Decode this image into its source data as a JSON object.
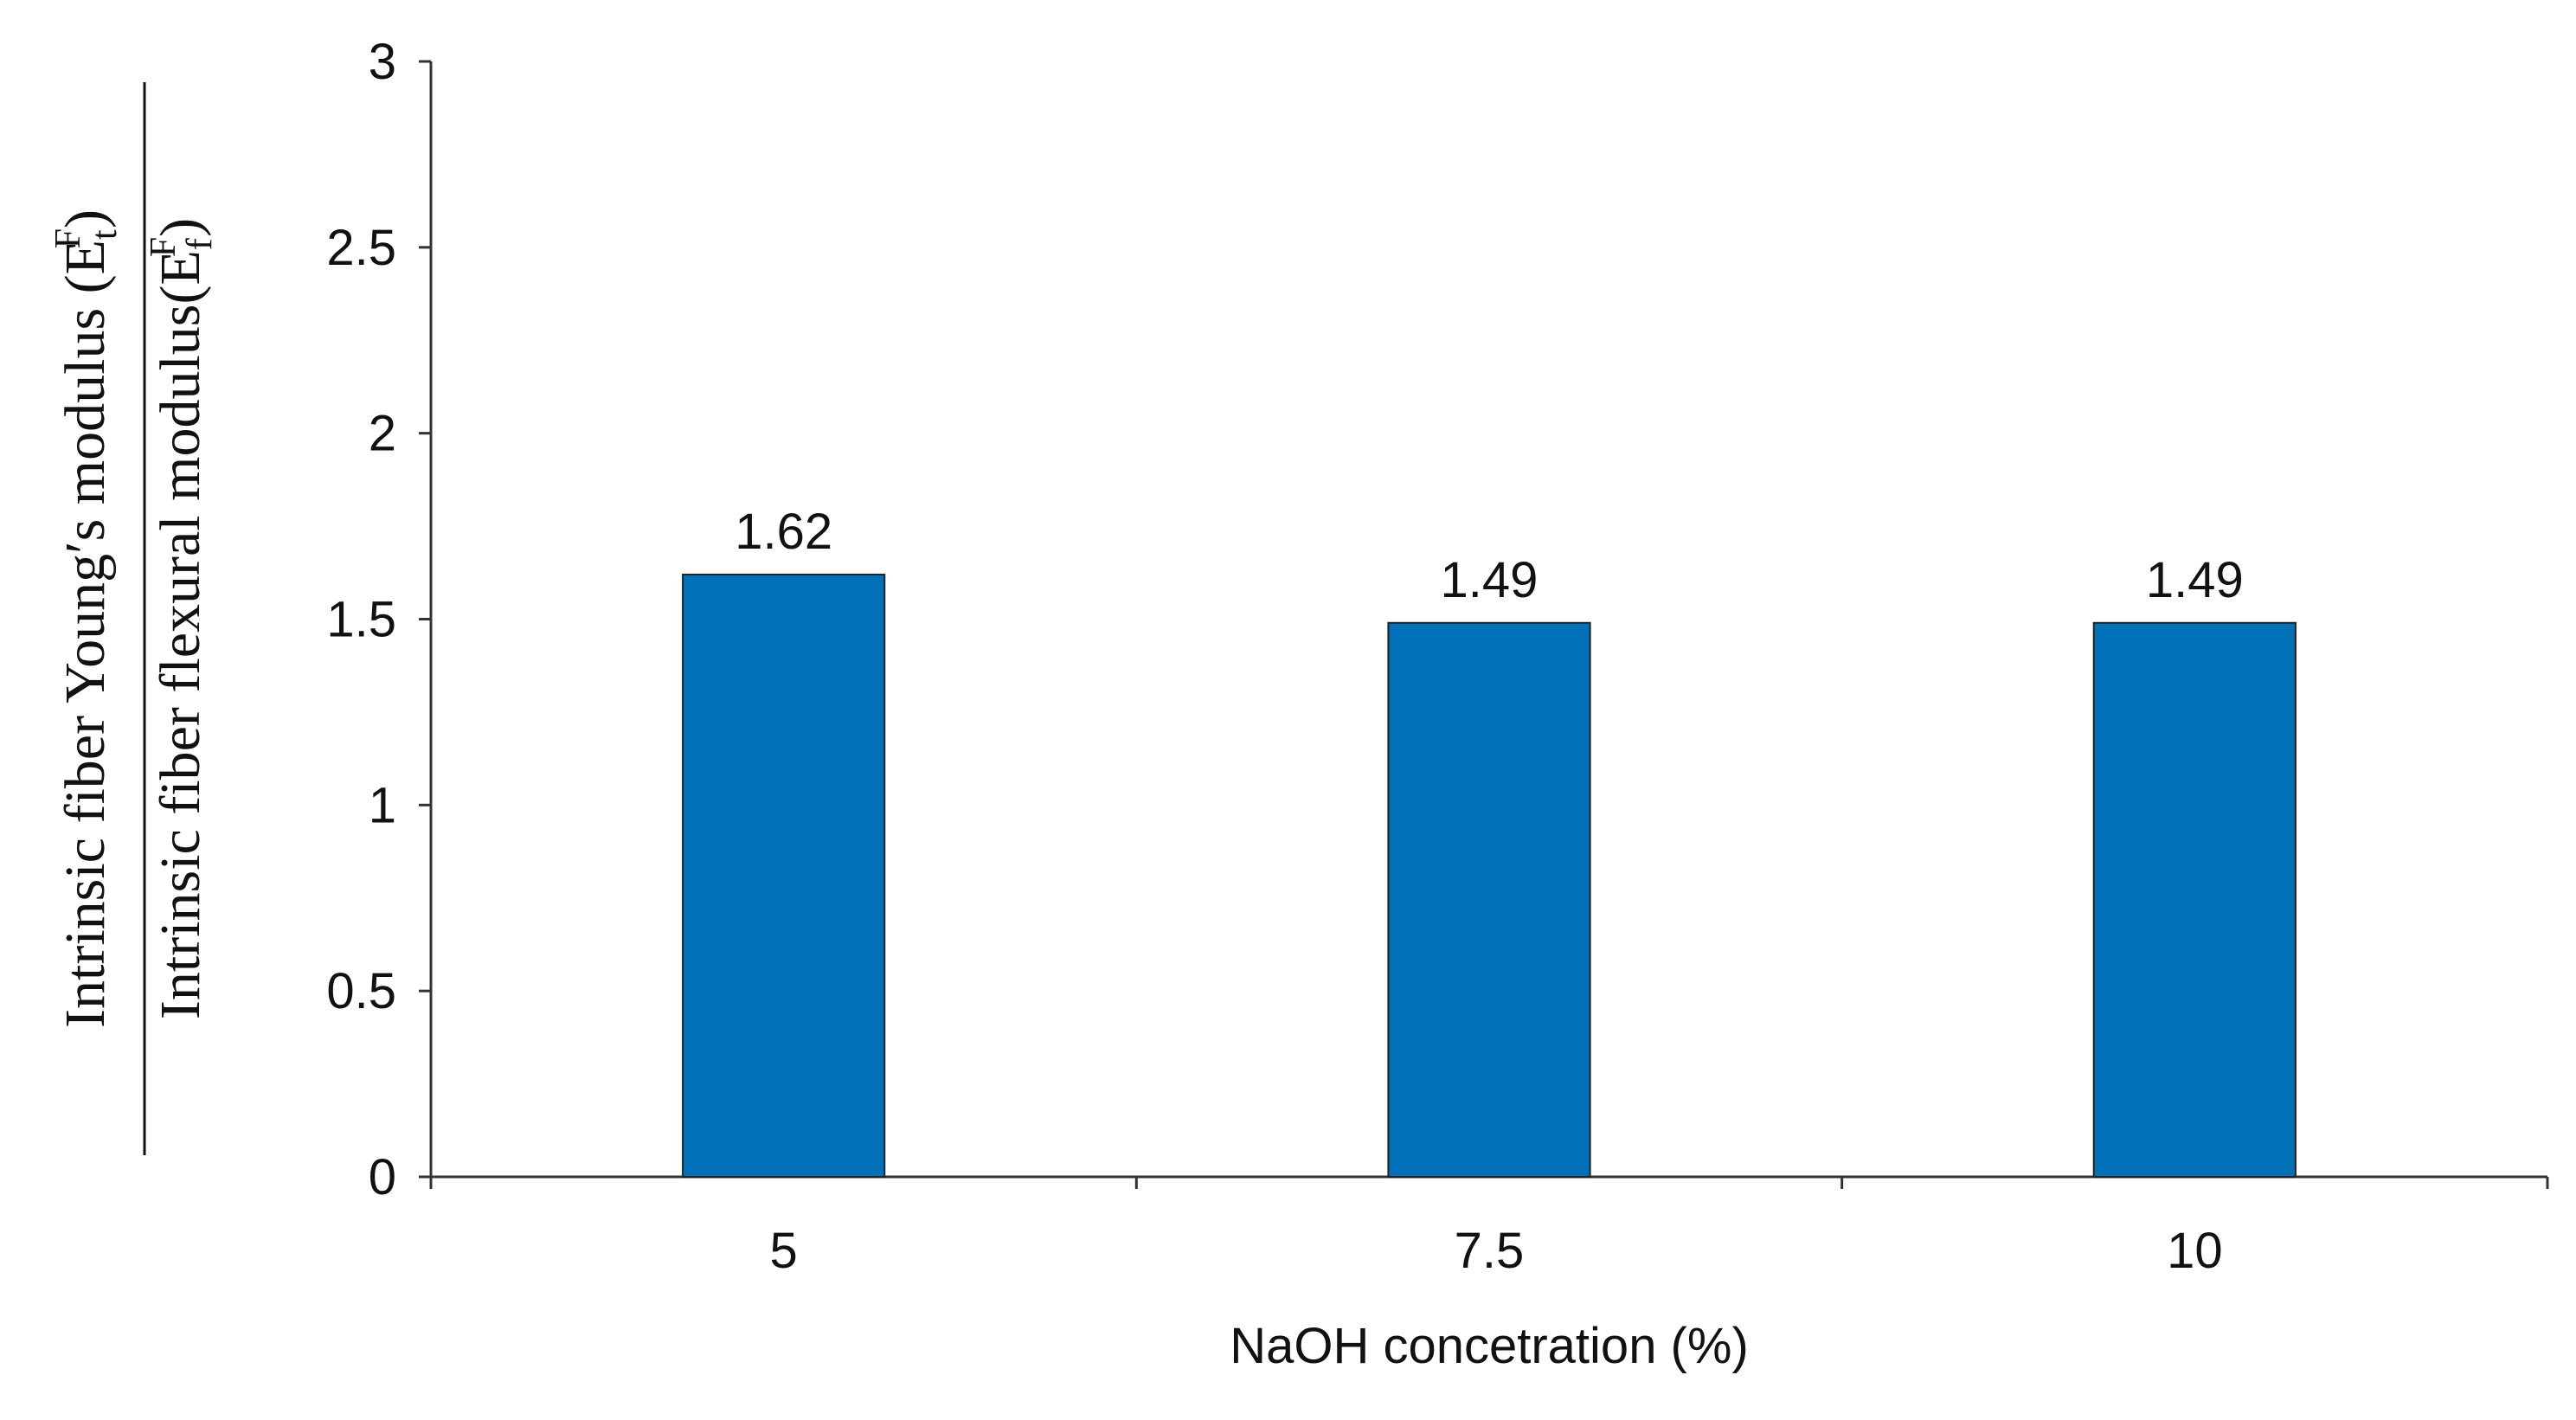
{
  "chart_data": {
    "type": "bar",
    "xlabel": "NaOH concetration (%)",
    "ylabel": {
      "numerator": [
        "Intrinsic fiber Young′s modulus (",
        "E",
        "t",
        "F",
        ")"
      ],
      "denominator": [
        "Intrinsic fiber flexural modulus(",
        "E",
        "f",
        "F",
        ")"
      ]
    },
    "categories": [
      "5",
      "7.5",
      "10"
    ],
    "values": [
      1.62,
      1.49,
      1.49
    ],
    "color": "#0070b8",
    "ylim": [
      0,
      3
    ],
    "yticks": [
      0,
      0.5,
      1,
      1.5,
      2,
      2.5,
      3
    ],
    "grid": false
  }
}
